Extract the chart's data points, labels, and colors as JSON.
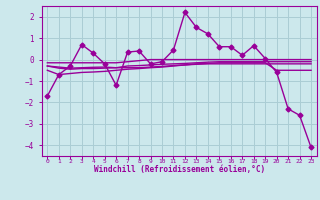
{
  "xlabel": "Windchill (Refroidissement éolien,°C)",
  "x": [
    0,
    1,
    2,
    3,
    4,
    5,
    6,
    7,
    8,
    9,
    10,
    11,
    12,
    13,
    14,
    15,
    16,
    17,
    18,
    19,
    20,
    21,
    22,
    23
  ],
  "line1": [
    -1.7,
    -0.7,
    -0.3,
    0.7,
    0.3,
    -0.2,
    -1.2,
    0.35,
    0.4,
    -0.2,
    -0.1,
    0.45,
    2.2,
    1.5,
    1.2,
    0.6,
    0.6,
    0.2,
    0.65,
    0.05,
    -0.6,
    -2.3,
    -2.6,
    -4.1
  ],
  "line2": [
    -0.15,
    -0.15,
    -0.15,
    -0.15,
    -0.15,
    -0.15,
    -0.15,
    -0.1,
    -0.05,
    0.0,
    0.0,
    0.0,
    0.0,
    0.0,
    0.0,
    0.0,
    0.0,
    0.0,
    0.0,
    0.0,
    0.0,
    0.0,
    0.0,
    0.0
  ],
  "line3": [
    -0.3,
    -0.4,
    -0.45,
    -0.42,
    -0.42,
    -0.4,
    -0.38,
    -0.3,
    -0.28,
    -0.25,
    -0.22,
    -0.2,
    -0.18,
    -0.15,
    -0.12,
    -0.1,
    -0.1,
    -0.1,
    -0.1,
    -0.1,
    -0.1,
    -0.1,
    -0.1,
    -0.1
  ],
  "line4": [
    -0.5,
    -0.7,
    -0.65,
    -0.6,
    -0.58,
    -0.55,
    -0.5,
    -0.45,
    -0.42,
    -0.38,
    -0.35,
    -0.3,
    -0.25,
    -0.22,
    -0.2,
    -0.2,
    -0.2,
    -0.2,
    -0.2,
    -0.2,
    -0.2,
    -0.2,
    -0.2,
    -0.2
  ],
  "line5": [
    -0.3,
    -0.35,
    -0.4,
    -0.38,
    -0.36,
    -0.35,
    -0.38,
    -0.38,
    -0.38,
    -0.35,
    -0.32,
    -0.28,
    -0.25,
    -0.2,
    -0.18,
    -0.15,
    -0.15,
    -0.15,
    -0.15,
    -0.15,
    -0.5,
    -0.5,
    -0.5,
    -0.5
  ],
  "ylim": [
    -4.5,
    2.5
  ],
  "yticks": [
    -4,
    -3,
    -2,
    -1,
    0,
    1,
    2
  ],
  "line_color": "#990099",
  "bg_color": "#cce8ec",
  "grid_color": "#aacdd4",
  "marker": "D",
  "marker_size": 2.5,
  "line_width": 1.0
}
